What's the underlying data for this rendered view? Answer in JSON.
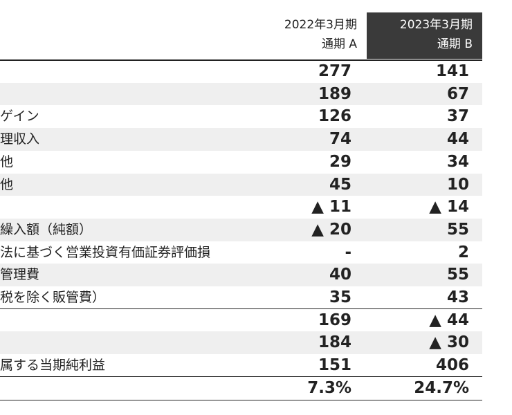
{
  "header": {
    "col_a": [
      "2022年3月期",
      "通期 A"
    ],
    "col_b": [
      "2023年3月期",
      "通期 B"
    ]
  },
  "table": {
    "rows": [
      {
        "a": "277",
        "b": "141"
      },
      {
        "a": "189",
        "b": "67"
      },
      {
        "label": "ゲイン",
        "a": "126",
        "b": "37"
      },
      {
        "label": "理収入",
        "a": "74",
        "b": "44"
      },
      {
        "label": "他",
        "a": "29",
        "b": "34"
      },
      {
        "label": "他",
        "a": "45",
        "b": "10"
      },
      {
        "a": "▲ 11",
        "b": "▲ 14"
      },
      {
        "label": "繰入額（純額）",
        "a": "▲ 20",
        "b": "55"
      },
      {
        "label": "法に基づく営業投資有価証券評価損",
        "a": "-",
        "b": "2"
      },
      {
        "label": "管理費",
        "a": "40",
        "b": "55"
      },
      {
        "label": "税を除く販管費）",
        "a": "35",
        "b": "43"
      },
      {
        "a": "169",
        "b": "▲ 44"
      },
      {
        "a": "184",
        "b": "▲ 30"
      },
      {
        "label": "属する当期純利益",
        "a": "151",
        "b": "406"
      },
      {
        "a": "7.3%",
        "b": "24.7%"
      }
    ]
  }
}
